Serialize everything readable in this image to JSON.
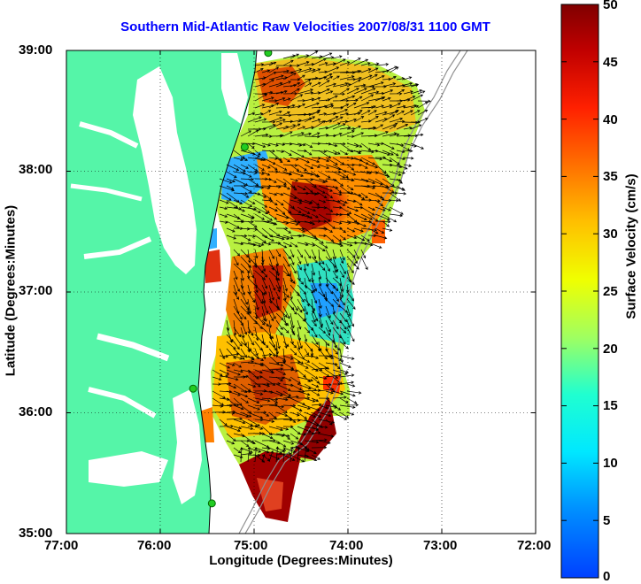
{
  "title": "Southern Mid-Atlantic Raw Velocities 2007/08/31 1100 GMT",
  "x_axis": {
    "label": "Longitude (Degrees:Minutes)",
    "ticks": [
      "77:00",
      "76:00",
      "75:00",
      "74:00",
      "73:00",
      "72:00"
    ]
  },
  "y_axis": {
    "label": "Latitude (Degrees:Minutes)",
    "ticks": [
      "39:00",
      "38:00",
      "37:00",
      "36:00",
      "35:00"
    ]
  },
  "colorbar": {
    "label": "Surface Velocity (cm/s)",
    "ticks": [
      "50",
      "45",
      "40",
      "35",
      "30",
      "25",
      "20",
      "15",
      "10",
      "5",
      "0"
    ],
    "range": [
      0,
      50
    ]
  },
  "colors": {
    "land": "#55f5a8",
    "water": "#ffffff",
    "title": "#0000ff",
    "station": "#22cc22"
  },
  "stations": [
    {
      "lon": -74.85,
      "lat": 38.98
    },
    {
      "lon": -75.1,
      "lat": 38.2
    },
    {
      "lon": -75.65,
      "lat": 36.2
    },
    {
      "lon": -75.45,
      "lat": 35.25
    }
  ]
}
